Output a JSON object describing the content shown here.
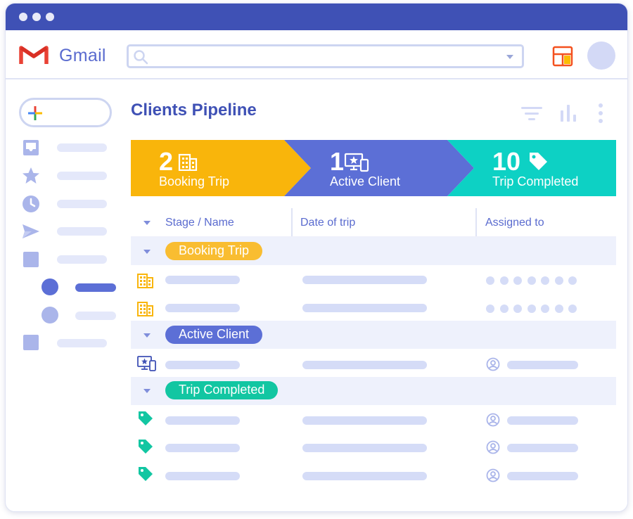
{
  "app": {
    "name": "Gmail"
  },
  "search": {
    "placeholder": "",
    "value": ""
  },
  "page": {
    "title": "Clients Pipeline"
  },
  "stages": [
    {
      "count": "2",
      "label": "Booking Trip",
      "color": "#f9b50b",
      "icon": "building-icon"
    },
    {
      "count": "1",
      "label": "Active Client",
      "color": "#5c6fd6",
      "icon": "devices-star-icon"
    },
    {
      "count": "10",
      "label": "Trip Completed",
      "color": "#0dd1c4",
      "icon": "tag-icon"
    }
  ],
  "table": {
    "headers": [
      "Stage / Name",
      "Date of trip",
      "Assigned to"
    ],
    "groups": [
      {
        "label": "Booking Trip",
        "color": "#f9bd31"
      },
      {
        "label": "Active Client",
        "color": "#5c6fd6"
      },
      {
        "label": "Trip Completed",
        "color": "#12c6a2"
      }
    ]
  },
  "colors": {
    "brand": "#3f51b5",
    "accent": "#5a6bcf",
    "placeholder_bar": "#d5dcf7",
    "band": "#eef1fc"
  }
}
